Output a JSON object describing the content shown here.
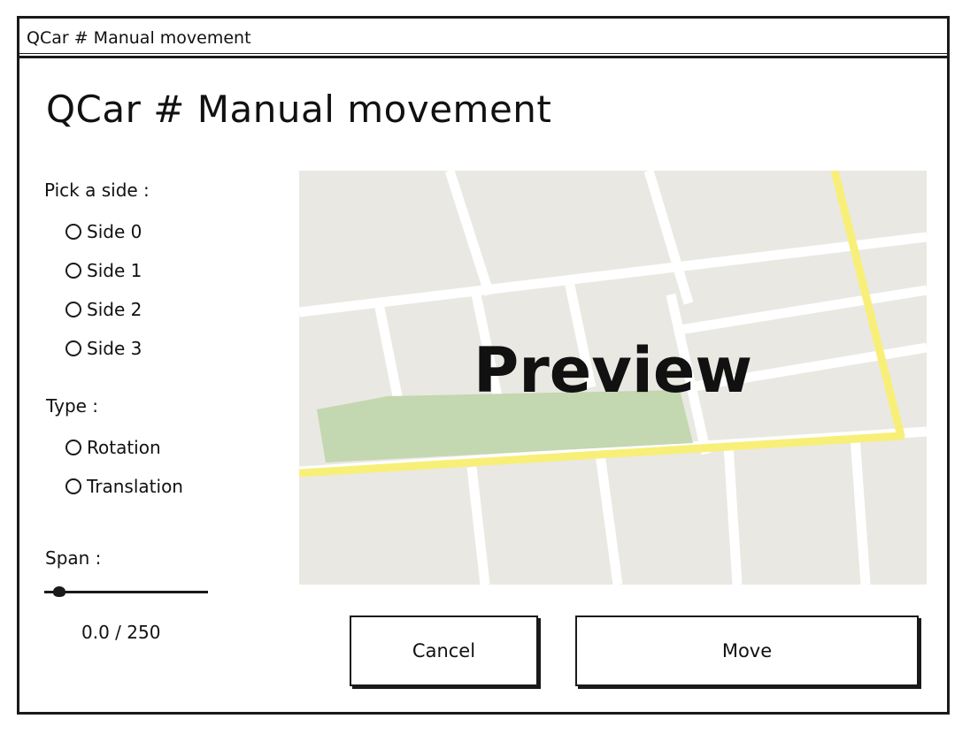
{
  "window": {
    "title": "QCar # Manual movement"
  },
  "heading": "QCar # Manual movement",
  "side": {
    "label": "Pick a side :",
    "options": [
      "Side 0",
      "Side 1",
      "Side 2",
      "Side 3"
    ]
  },
  "type": {
    "label": "Type :",
    "options": [
      "Rotation",
      "Translation"
    ]
  },
  "span": {
    "label": "Span :",
    "value_text": "0.0 / 250",
    "value": 0.0,
    "max": 250
  },
  "preview": {
    "label": "Preview"
  },
  "buttons": {
    "cancel": "Cancel",
    "move": "Move"
  },
  "colors": {
    "map_bg": "#eae8e2",
    "road": "#ffffff",
    "highway": "#f8ef79",
    "park": "#c3d7b1"
  }
}
